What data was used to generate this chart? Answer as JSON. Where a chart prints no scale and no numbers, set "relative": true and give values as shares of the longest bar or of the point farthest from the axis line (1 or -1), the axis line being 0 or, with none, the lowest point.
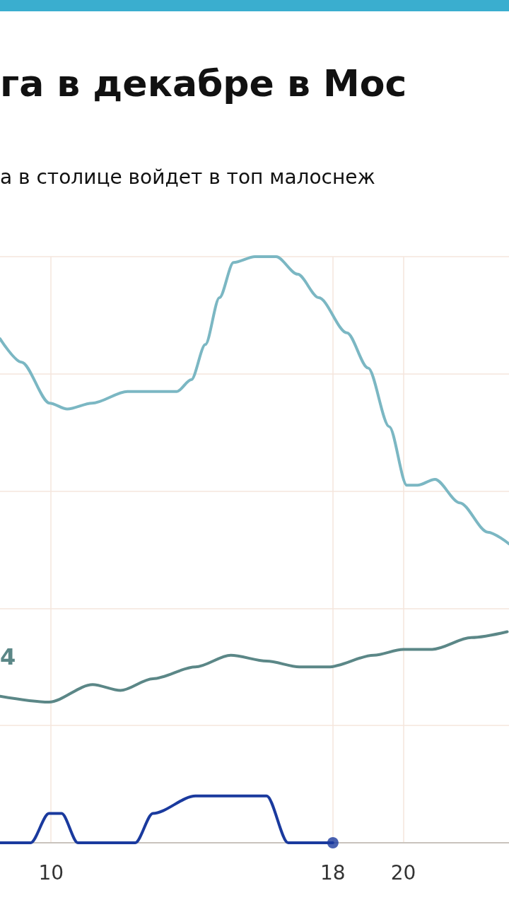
{
  "chart_data": {
    "type": "line",
    "title": "га в декабре в Мос",
    "subtitle": "а в столице войдет в топ малоснеж",
    "relative": true,
    "grid": true,
    "marker": "none",
    "line_style": "solid",
    "xlim": [
      8.55,
      23.0
    ],
    "xticks": [
      10,
      18,
      20
    ],
    "annotations": [
      "4"
    ],
    "series": [
      {
        "color": "#7bb7c3",
        "x": [
          8.55,
          9.16,
          9.96,
          10.46,
          11.16,
          12.17,
          12.87,
          13.57,
          13.98,
          14.38,
          14.78,
          15.18,
          15.79,
          16.39,
          17.0,
          17.6,
          18.4,
          19.0,
          19.6,
          20.1,
          20.4,
          20.9,
          21.6,
          22.4,
          23.0
        ],
        "values": [
          0.86,
          0.82,
          0.75,
          0.74,
          0.75,
          0.77,
          0.77,
          0.77,
          0.79,
          0.85,
          0.93,
          0.99,
          1.0,
          1.0,
          0.97,
          0.93,
          0.87,
          0.81,
          0.71,
          0.61,
          0.61,
          0.62,
          0.58,
          0.53,
          0.51
        ]
      },
      {
        "color": "#5b8787",
        "x": [
          8.55,
          9.94,
          11.18,
          11.97,
          12.89,
          14.1,
          15.1,
          16.12,
          17.05,
          17.87,
          19.16,
          20.0,
          20.82,
          21.93,
          22.95
        ],
        "values": [
          0.25,
          0.24,
          0.27,
          0.26,
          0.28,
          0.3,
          0.32,
          0.31,
          0.3,
          0.3,
          0.32,
          0.33,
          0.33,
          0.35,
          0.36
        ]
      },
      {
        "color": "#1a3a9e",
        "x": [
          8.55,
          9.42,
          9.94,
          10.3,
          10.76,
          12.39,
          12.89,
          14.1,
          16.12,
          16.73,
          18.0
        ],
        "values": [
          0,
          0,
          0.05,
          0.05,
          0,
          0,
          0.05,
          0.08,
          0.08,
          0,
          0
        ]
      },
      {
        "type": "scatter",
        "color": "#1a3a9e",
        "x": [
          18.0
        ],
        "values": [
          0
        ],
        "marker": "circle"
      }
    ]
  }
}
